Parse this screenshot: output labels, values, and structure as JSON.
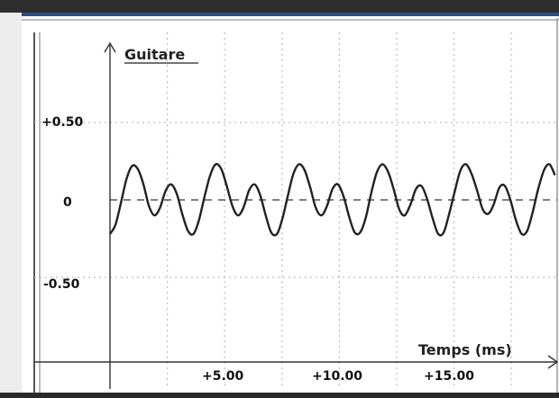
{
  "chart_data": {
    "type": "line",
    "title": "Guitare",
    "xlabel": "Temps (ms)",
    "ylabel": "",
    "x_ticks": [
      "+5.00",
      "+10.00",
      "+15.00"
    ],
    "y_ticks": [
      "+0.50",
      "0",
      "-0.50"
    ],
    "xlim": [
      0,
      19.5
    ],
    "ylim": [
      -0.5,
      0.5
    ],
    "grid": true,
    "zero_line": "dashed",
    "series": [
      {
        "x": [
          0,
          0.24,
          0.49,
          0.73,
          0.97,
          1.21,
          1.46,
          1.7,
          1.94,
          2.18,
          2.43,
          2.67,
          2.91,
          3.15,
          3.4,
          3.64,
          3.88,
          4.12,
          4.37,
          4.61,
          4.85,
          5.09,
          5.34,
          5.58,
          5.82,
          6.06,
          6.31,
          6.55,
          6.79,
          7.03,
          7.28,
          7.52,
          7.76,
          8.0,
          8.25,
          8.49,
          8.73,
          8.97,
          9.22,
          9.46,
          9.7,
          9.94,
          10.19,
          10.43,
          10.67,
          10.91,
          11.16,
          11.4,
          11.64,
          11.88,
          12.13,
          12.37,
          12.61,
          12.85,
          13.1,
          13.34,
          13.58,
          13.82,
          14.07,
          14.31,
          14.55,
          14.79,
          15.04,
          15.28,
          15.52,
          15.76,
          16.01,
          16.25,
          16.49,
          16.73,
          16.98,
          17.22,
          17.46,
          17.7,
          17.95,
          18.19,
          18.43,
          18.67,
          18.92,
          19.16,
          19.4
        ],
        "y": [
          -0.22,
          -0.16,
          -0.01,
          0.14,
          0.22,
          0.2,
          0.1,
          -0.04,
          -0.1,
          -0.05,
          0.06,
          0.1,
          0.04,
          -0.09,
          -0.2,
          -0.22,
          -0.13,
          0.02,
          0.16,
          0.23,
          0.2,
          0.09,
          -0.04,
          -0.1,
          -0.05,
          0.06,
          0.1,
          0.03,
          -0.1,
          -0.21,
          -0.22,
          -0.12,
          0.03,
          0.17,
          0.23,
          0.19,
          0.08,
          -0.05,
          -0.1,
          -0.04,
          0.07,
          0.1,
          0.02,
          -0.11,
          -0.21,
          -0.21,
          -0.11,
          0.05,
          0.18,
          0.23,
          0.18,
          0.07,
          -0.06,
          -0.1,
          -0.03,
          0.07,
          0.09,
          0.01,
          -0.12,
          -0.22,
          -0.21,
          -0.09,
          0.06,
          0.19,
          0.23,
          0.17,
          0.06,
          -0.06,
          -0.09,
          -0.03,
          0.08,
          0.09,
          0.0,
          -0.13,
          -0.22,
          -0.2,
          -0.08,
          0.07,
          0.19,
          0.23,
          0.16
        ]
      }
    ],
    "colors": {
      "curve": "#222222",
      "grid": "#bdbdbd",
      "axis": "#333333",
      "frame_top": "#2b4f86"
    }
  }
}
